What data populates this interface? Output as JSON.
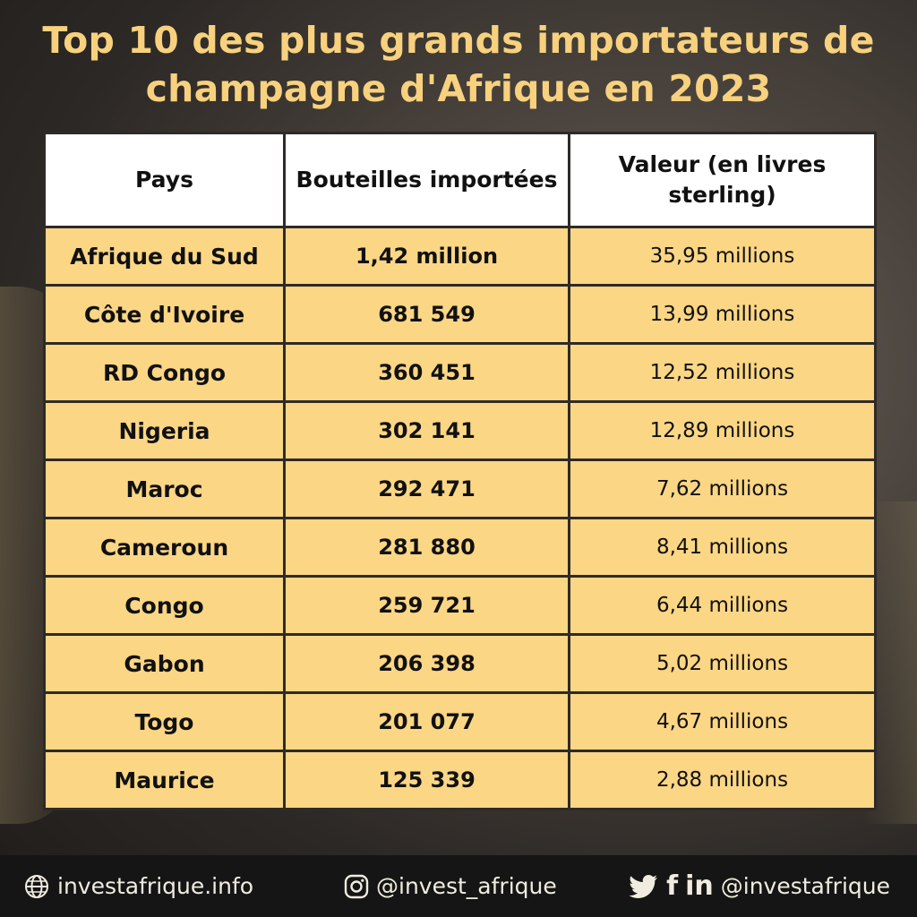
{
  "title_line1": "Top 10 des plus grands importateurs de",
  "title_line2": "champagne d'Afrique en 2023",
  "chart_data": {
    "type": "table",
    "columns": [
      "Pays",
      "Bouteilles importées",
      "Valeur (en livres sterling)"
    ],
    "rows": [
      {
        "country": "Afrique du Sud",
        "bottles": "1,42 million",
        "value": "35,95 millions"
      },
      {
        "country": "Côte d'Ivoire",
        "bottles": "681 549",
        "value": "13,99 millions"
      },
      {
        "country": "RD Congo",
        "bottles": "360 451",
        "value": "12,52 millions"
      },
      {
        "country": "Nigeria",
        "bottles": "302 141",
        "value": "12,89 millions"
      },
      {
        "country": "Maroc",
        "bottles": "292 471",
        "value": "7,62 millions"
      },
      {
        "country": "Cameroun",
        "bottles": "281 880",
        "value": "8,41 millions"
      },
      {
        "country": "Congo",
        "bottles": "259 721",
        "value": "6,44 millions"
      },
      {
        "country": "Gabon",
        "bottles": "206 398",
        "value": "5,02 millions"
      },
      {
        "country": "Togo",
        "bottles": "201 077",
        "value": "4,67 millions"
      },
      {
        "country": "Maurice",
        "bottles": "125 339",
        "value": "2,88 millions"
      }
    ]
  },
  "footer": {
    "website": "investafrique.info",
    "instagram": "@invest_afrique",
    "social_handle": "@investafrique",
    "icons": [
      "globe-icon",
      "instagram-icon",
      "twitter-icon",
      "facebook-icon",
      "linkedin-icon"
    ]
  },
  "colors": {
    "title": "#f7d17e",
    "row_fill": "#fbd685",
    "header_fill": "#ffffff",
    "footer_bg": "#151515"
  }
}
